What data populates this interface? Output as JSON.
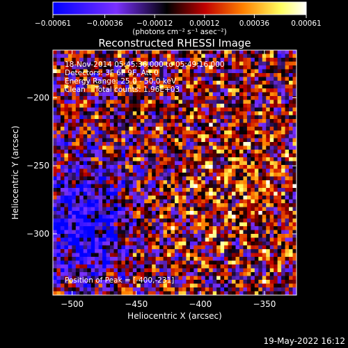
{
  "chart_data": {
    "type": "heatmap",
    "title": "Reconstructed RHESSI Image",
    "xlabel": "Heliocentric X (arcsec)",
    "ylabel": "Heliocentric Y (arcsec)",
    "xlim": [
      -515,
      -325
    ],
    "ylim": [
      -345,
      -165
    ],
    "x_ticks": [
      -500,
      -450,
      -400,
      -350
    ],
    "y_ticks": [
      -200,
      -250,
      -300
    ],
    "x_tick_labels": [
      "−500",
      "−450",
      "−400",
      "−350"
    ],
    "y_tick_labels": [
      "−200",
      "−250",
      "−300"
    ],
    "colorbar": {
      "range": [
        -0.00061,
        0.00061
      ],
      "ticks": [
        -0.00061,
        -0.00036,
        -0.00012,
        0.00012,
        0.00036,
        0.00061
      ],
      "tick_labels": [
        "−0.00061",
        "−0.00036",
        "−0.00012",
        "0.00012",
        "0.00036",
        "0.00061"
      ],
      "unit_label": "(photons cm⁻² s⁻¹ asec⁻²)",
      "colors": [
        "#0000ff",
        "#7030ff",
        "#000000",
        "#c00000",
        "#ff8000",
        "#ffff60",
        "#ffffff"
      ]
    },
    "grid": false,
    "annotations": {
      "line1": "18-Nov-2014 05:45:36.000 to 05:49:16.000",
      "line2": "Detectors: 3F 6F 9F, Att 0",
      "line3": "Energy Range: 25.0 - 50.0 keV",
      "line4": "Clean    Total counts: 1.96E+03",
      "peak": "Position of Peak = [-400,-231]"
    },
    "peak_position": [
      -400,
      -231
    ]
  },
  "footer": {
    "timestamp": "19-May-2022 16:12"
  }
}
